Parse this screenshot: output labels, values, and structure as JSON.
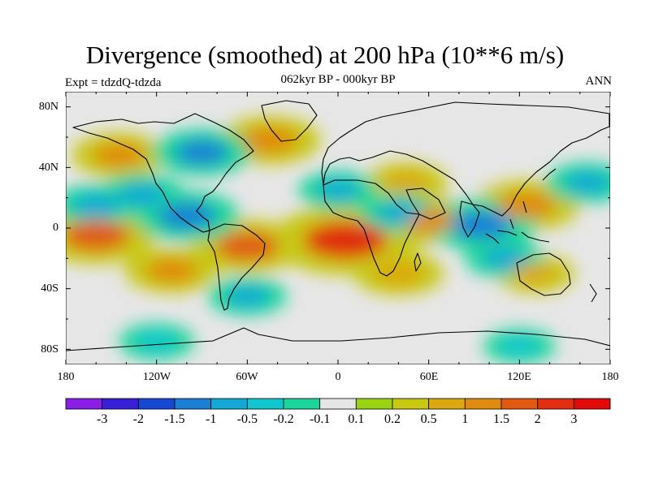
{
  "title": "Divergence (smoothed) at 200 hPa (10**6 m/s)",
  "subtitle_left": "Expt = tdzdQ-tdzda",
  "subtitle_center": "062kyr BP - 000kyr BP",
  "subtitle_right": "ANN",
  "lat_labels": [
    "80N",
    "40N",
    "0",
    "40S",
    "80S"
  ],
  "lon_labels": [
    "180",
    "120W",
    "60W",
    "0",
    "60E",
    "120E",
    "180"
  ],
  "colorbar": {
    "labels": [
      "-3",
      "-2",
      "-1.5",
      "-1",
      "-0.5",
      "-0.2",
      "-0.1",
      "0.1",
      "0.2",
      "0.5",
      "1",
      "1.5",
      "2",
      "3"
    ],
    "colors": [
      "#8a1ee6",
      "#3a1fd8",
      "#1648d4",
      "#1b7fd6",
      "#14a8d6",
      "#12c6d0",
      "#1bd59a",
      "#e6e6e6",
      "#9ad314",
      "#c8c812",
      "#dca810",
      "#e08a10",
      "#e05a12",
      "#e02e10",
      "#e00a0a"
    ]
  },
  "chart_data": {
    "type": "heatmap",
    "title": "Divergence (smoothed) at 200 hPa (10**6 m/s)",
    "subtitle": "062kyr BP - 000kyr BP",
    "experiment": "Expt = tdzdQ-tdzda",
    "season": "ANN",
    "x_ticks": [
      "180",
      "120W",
      "60W",
      "0",
      "60E",
      "120E",
      "180"
    ],
    "y_ticks": [
      "80N",
      "40N",
      "0",
      "40S",
      "80S"
    ],
    "levels": [
      -3,
      -2,
      -1.5,
      -1,
      -0.5,
      -0.2,
      -0.1,
      0.1,
      0.2,
      0.5,
      1,
      1.5,
      2,
      3
    ],
    "projection": "cylindrical equidistant"
  },
  "features": [
    {
      "name": "positive-anomaly",
      "lon": -45,
      "lat": 58,
      "value": 1.2
    },
    {
      "name": "positive-anomaly",
      "lon": -145,
      "lat": 48,
      "value": 1.0
    },
    {
      "name": "positive-anomaly",
      "lon": -60,
      "lat": -12,
      "value": 1.5
    },
    {
      "name": "positive-anomaly",
      "lon": 5,
      "lat": -8,
      "value": 2.5
    },
    {
      "name": "positive-anomaly",
      "lon": -160,
      "lat": -5,
      "value": 1.7
    },
    {
      "name": "positive-anomaly",
      "lon": -110,
      "lat": -28,
      "value": 1.0
    },
    {
      "name": "positive-anomaly",
      "lon": 125,
      "lat": 15,
      "value": 1.3
    },
    {
      "name": "positive-anomaly",
      "lon": 60,
      "lat": 5,
      "value": 1.1
    },
    {
      "name": "positive-anomaly",
      "lon": 40,
      "lat": -30,
      "value": 0.9
    },
    {
      "name": "positive-anomaly",
      "lon": 130,
      "lat": -30,
      "value": 0.6
    },
    {
      "name": "positive-anomaly",
      "lon": 45,
      "lat": 30,
      "value": 0.7
    },
    {
      "name": "negative-anomaly",
      "lon": -100,
      "lat": 8,
      "value": -1.3
    },
    {
      "name": "negative-anomaly",
      "lon": -90,
      "lat": 50,
      "value": -1.1
    },
    {
      "name": "negative-anomaly",
      "lon": 95,
      "lat": 2,
      "value": -1.4
    },
    {
      "name": "negative-anomaly",
      "lon": -130,
      "lat": 22,
      "value": -0.8
    },
    {
      "name": "negative-anomaly",
      "lon": -160,
      "lat": 15,
      "value": -0.8
    },
    {
      "name": "negative-anomaly",
      "lon": 0,
      "lat": 25,
      "value": -0.6
    },
    {
      "name": "negative-anomaly",
      "lon": -60,
      "lat": -45,
      "value": -0.6
    },
    {
      "name": "negative-anomaly",
      "lon": 40,
      "lat": 10,
      "value": -0.6
    },
    {
      "name": "negative-anomaly",
      "lon": 110,
      "lat": -20,
      "value": -0.6
    },
    {
      "name": "negative-anomaly",
      "lon": 165,
      "lat": 30,
      "value": -0.7
    },
    {
      "name": "negative-anomaly",
      "lon": -120,
      "lat": -75,
      "value": -0.5
    },
    {
      "name": "negative-anomaly",
      "lon": 120,
      "lat": -78,
      "value": -0.4
    }
  ]
}
